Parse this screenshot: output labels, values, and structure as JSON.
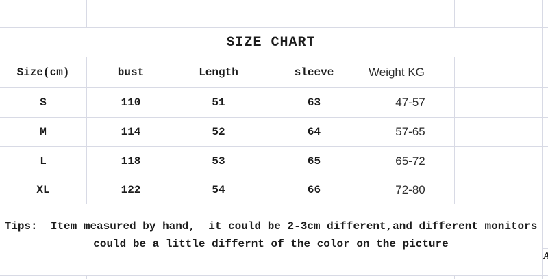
{
  "title": "SIZE CHART",
  "table": {
    "headers": {
      "size": "Size(cm)",
      "bust": "bust",
      "length": "Length",
      "sleeve": "sleeve",
      "weight": "Weight KG"
    },
    "rows": [
      {
        "size": "S",
        "bust": "110",
        "length": "51",
        "sleeve": "63",
        "weight": "47-57"
      },
      {
        "size": "M",
        "bust": "114",
        "length": "52",
        "sleeve": "64",
        "weight": "57-65"
      },
      {
        "size": "L",
        "bust": "118",
        "length": "53",
        "sleeve": "65",
        "weight": "65-72"
      },
      {
        "size": "XL",
        "bust": "122",
        "length": "54",
        "sleeve": "66",
        "weight": "72-80"
      }
    ]
  },
  "tips": {
    "line1": "Tips:  Item measured by hand,  it could be 2-3cm different,and different monitors",
    "line2": "could be a little differnt of the color on the picture"
  },
  "right_edge": {
    "glyph": "A"
  },
  "colors": {
    "grid": "#d8dae5",
    "text": "#1c1c1c",
    "sans_text": "#2e2e2e"
  }
}
